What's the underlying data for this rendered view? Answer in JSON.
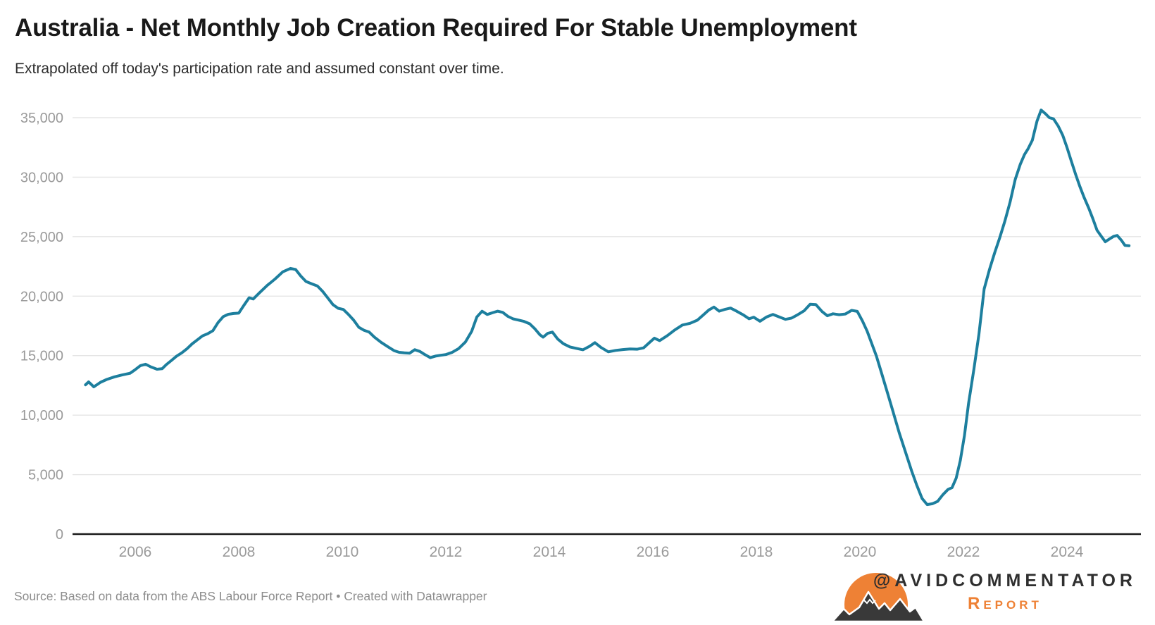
{
  "chart_data": {
    "type": "line",
    "title": "Australia - Net Monthly Job Creation Required For Stable Unemployment",
    "subtitle": "Extrapolated off today's participation rate and assumed constant over time.",
    "xlabel": "",
    "ylabel": "",
    "legend": "none",
    "grid": "horizontal-only",
    "ylim": [
      0,
      35000
    ],
    "xlim": [
      2004.8,
      2025.4
    ],
    "x_tick_years": [
      2006,
      2008,
      2010,
      2012,
      2014,
      2016,
      2018,
      2020,
      2022,
      2024
    ],
    "y_ticks": [
      0,
      5000,
      10000,
      15000,
      20000,
      25000,
      30000,
      35000
    ],
    "series": [
      {
        "name": "Net monthly job creation required for stable unemployment",
        "points": [
          [
            2005.04,
            12550
          ],
          [
            2005.1,
            12790
          ],
          [
            2005.2,
            12380
          ],
          [
            2005.33,
            12760
          ],
          [
            2005.45,
            13000
          ],
          [
            2005.6,
            13220
          ],
          [
            2005.75,
            13380
          ],
          [
            2005.9,
            13520
          ],
          [
            2006.0,
            13820
          ],
          [
            2006.1,
            14160
          ],
          [
            2006.2,
            14280
          ],
          [
            2006.3,
            14060
          ],
          [
            2006.42,
            13860
          ],
          [
            2006.52,
            13900
          ],
          [
            2006.6,
            14240
          ],
          [
            2006.7,
            14600
          ],
          [
            2006.8,
            14960
          ],
          [
            2006.9,
            15240
          ],
          [
            2007.0,
            15580
          ],
          [
            2007.1,
            15990
          ],
          [
            2007.2,
            16330
          ],
          [
            2007.3,
            16660
          ],
          [
            2007.4,
            16840
          ],
          [
            2007.5,
            17100
          ],
          [
            2007.6,
            17780
          ],
          [
            2007.7,
            18280
          ],
          [
            2007.8,
            18480
          ],
          [
            2007.9,
            18540
          ],
          [
            2008.0,
            18570
          ],
          [
            2008.1,
            19230
          ],
          [
            2008.2,
            19860
          ],
          [
            2008.28,
            19760
          ],
          [
            2008.4,
            20280
          ],
          [
            2008.55,
            20900
          ],
          [
            2008.7,
            21440
          ],
          [
            2008.85,
            22040
          ],
          [
            2009.0,
            22330
          ],
          [
            2009.1,
            22240
          ],
          [
            2009.2,
            21680
          ],
          [
            2009.3,
            21230
          ],
          [
            2009.42,
            21020
          ],
          [
            2009.52,
            20850
          ],
          [
            2009.62,
            20400
          ],
          [
            2009.72,
            19850
          ],
          [
            2009.82,
            19280
          ],
          [
            2009.92,
            18980
          ],
          [
            2010.02,
            18880
          ],
          [
            2010.12,
            18460
          ],
          [
            2010.22,
            17980
          ],
          [
            2010.32,
            17380
          ],
          [
            2010.42,
            17130
          ],
          [
            2010.52,
            16980
          ],
          [
            2010.62,
            16560
          ],
          [
            2010.75,
            16120
          ],
          [
            2010.88,
            15750
          ],
          [
            2011.0,
            15420
          ],
          [
            2011.1,
            15280
          ],
          [
            2011.2,
            15230
          ],
          [
            2011.3,
            15200
          ],
          [
            2011.4,
            15500
          ],
          [
            2011.5,
            15350
          ],
          [
            2011.6,
            15080
          ],
          [
            2011.7,
            14830
          ],
          [
            2011.8,
            14960
          ],
          [
            2011.9,
            15030
          ],
          [
            2012.0,
            15090
          ],
          [
            2012.12,
            15270
          ],
          [
            2012.25,
            15600
          ],
          [
            2012.38,
            16150
          ],
          [
            2012.5,
            17050
          ],
          [
            2012.6,
            18250
          ],
          [
            2012.7,
            18730
          ],
          [
            2012.8,
            18460
          ],
          [
            2012.9,
            18600
          ],
          [
            2013.0,
            18740
          ],
          [
            2013.1,
            18640
          ],
          [
            2013.2,
            18300
          ],
          [
            2013.3,
            18090
          ],
          [
            2013.4,
            17990
          ],
          [
            2013.5,
            17890
          ],
          [
            2013.62,
            17680
          ],
          [
            2013.72,
            17260
          ],
          [
            2013.82,
            16740
          ],
          [
            2013.88,
            16550
          ],
          [
            2013.97,
            16880
          ],
          [
            2014.06,
            16980
          ],
          [
            2014.16,
            16400
          ],
          [
            2014.27,
            16010
          ],
          [
            2014.4,
            15730
          ],
          [
            2014.53,
            15600
          ],
          [
            2014.65,
            15490
          ],
          [
            2014.78,
            15790
          ],
          [
            2014.88,
            16090
          ],
          [
            2015.0,
            15680
          ],
          [
            2015.14,
            15320
          ],
          [
            2015.28,
            15440
          ],
          [
            2015.42,
            15510
          ],
          [
            2015.56,
            15560
          ],
          [
            2015.7,
            15540
          ],
          [
            2015.82,
            15650
          ],
          [
            2015.94,
            16120
          ],
          [
            2016.03,
            16470
          ],
          [
            2016.13,
            16260
          ],
          [
            2016.28,
            16680
          ],
          [
            2016.42,
            17150
          ],
          [
            2016.57,
            17570
          ],
          [
            2016.72,
            17720
          ],
          [
            2016.86,
            17980
          ],
          [
            2016.98,
            18440
          ],
          [
            2017.08,
            18830
          ],
          [
            2017.18,
            19080
          ],
          [
            2017.28,
            18740
          ],
          [
            2017.4,
            18900
          ],
          [
            2017.5,
            19000
          ],
          [
            2017.62,
            18730
          ],
          [
            2017.74,
            18440
          ],
          [
            2017.86,
            18100
          ],
          [
            2017.95,
            18230
          ],
          [
            2018.07,
            17890
          ],
          [
            2018.2,
            18260
          ],
          [
            2018.32,
            18460
          ],
          [
            2018.44,
            18260
          ],
          [
            2018.56,
            18050
          ],
          [
            2018.68,
            18160
          ],
          [
            2018.8,
            18440
          ],
          [
            2018.92,
            18760
          ],
          [
            2019.04,
            19320
          ],
          [
            2019.15,
            19290
          ],
          [
            2019.27,
            18700
          ],
          [
            2019.37,
            18350
          ],
          [
            2019.48,
            18520
          ],
          [
            2019.6,
            18440
          ],
          [
            2019.72,
            18500
          ],
          [
            2019.84,
            18800
          ],
          [
            2019.95,
            18720
          ],
          [
            2020.05,
            17900
          ],
          [
            2020.14,
            17050
          ],
          [
            2020.23,
            16000
          ],
          [
            2020.32,
            14950
          ],
          [
            2020.42,
            13500
          ],
          [
            2020.53,
            11900
          ],
          [
            2020.64,
            10300
          ],
          [
            2020.76,
            8500
          ],
          [
            2020.88,
            6900
          ],
          [
            2021.0,
            5300
          ],
          [
            2021.1,
            4100
          ],
          [
            2021.2,
            3000
          ],
          [
            2021.3,
            2480
          ],
          [
            2021.4,
            2550
          ],
          [
            2021.5,
            2750
          ],
          [
            2021.6,
            3300
          ],
          [
            2021.7,
            3750
          ],
          [
            2021.78,
            3900
          ],
          [
            2021.86,
            4700
          ],
          [
            2021.94,
            6200
          ],
          [
            2022.02,
            8300
          ],
          [
            2022.1,
            11000
          ],
          [
            2022.2,
            13800
          ],
          [
            2022.3,
            16800
          ],
          [
            2022.4,
            20600
          ],
          [
            2022.5,
            22200
          ],
          [
            2022.6,
            23600
          ],
          [
            2022.7,
            24900
          ],
          [
            2022.8,
            26300
          ],
          [
            2022.9,
            27900
          ],
          [
            2023.0,
            29800
          ],
          [
            2023.1,
            31100
          ],
          [
            2023.18,
            31900
          ],
          [
            2023.25,
            32400
          ],
          [
            2023.33,
            33100
          ],
          [
            2023.42,
            34700
          ],
          [
            2023.5,
            35640
          ],
          [
            2023.58,
            35350
          ],
          [
            2023.66,
            35000
          ],
          [
            2023.74,
            34900
          ],
          [
            2023.83,
            34300
          ],
          [
            2023.92,
            33500
          ],
          [
            2024.0,
            32500
          ],
          [
            2024.08,
            31400
          ],
          [
            2024.17,
            30200
          ],
          [
            2024.25,
            29200
          ],
          [
            2024.33,
            28300
          ],
          [
            2024.42,
            27400
          ],
          [
            2024.5,
            26500
          ],
          [
            2024.58,
            25550
          ],
          [
            2024.66,
            25050
          ],
          [
            2024.74,
            24570
          ],
          [
            2024.82,
            24800
          ],
          [
            2024.9,
            25020
          ],
          [
            2024.97,
            25100
          ],
          [
            2025.05,
            24700
          ],
          [
            2025.12,
            24270
          ],
          [
            2025.2,
            24240
          ]
        ]
      }
    ]
  },
  "footer": {
    "source": "Source: Based on data from the ABS Labour Force Report • Created with Datawrapper",
    "logo_handle": "@AVIDCOMMENTATOR",
    "logo_wordmark": "Report"
  },
  "colors": {
    "line": "#1d7f9e",
    "grid": "#e5e5e5",
    "axis": "#1a1a1a",
    "tick_label": "#9a9a9a",
    "title": "#191919",
    "subtitle": "#2d2d2d",
    "source": "#8d8d8d",
    "logo_orange": "#ee8135",
    "logo_dark": "#393939",
    "logo_text": "#2f2f2f"
  }
}
